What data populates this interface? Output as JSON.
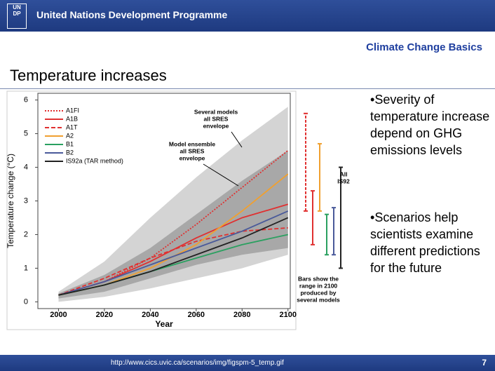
{
  "header": {
    "organization": "United Nations Development Programme",
    "logo": [
      "UN",
      "DP"
    ]
  },
  "subtitle": "Climate Change Basics",
  "heading": "Temperature increases",
  "bullets": [
    "Severity of temperature increase depend on GHG emissions levels",
    "Scenarios help scientists examine different predictions for the future"
  ],
  "source_url": "http://www.cics.uvic.ca/scenarios/img/figspm-5_temp.gif",
  "page_number": "7",
  "chart_data": {
    "type": "line",
    "x_label": "Year",
    "y_label": "Temperature change (°C)",
    "x": [
      2000,
      2020,
      2040,
      2060,
      2080,
      2100
    ],
    "xlim": [
      1991,
      2101
    ],
    "ylim": [
      -0.2,
      6.2
    ],
    "xticks": [
      2000,
      2020,
      2040,
      2060,
      2080,
      2100
    ],
    "yticks": [
      0,
      1,
      2,
      3,
      4,
      5,
      6
    ],
    "bands": [
      {
        "color": "#d4d4d4",
        "lower": [
          0,
          0.15,
          0.4,
          0.7,
          1.0,
          1.4
        ],
        "upper": [
          0.3,
          1.2,
          2.5,
          3.7,
          4.8,
          5.8
        ]
      },
      {
        "color": "#a8a8a8",
        "lower": [
          0.1,
          0.3,
          0.7,
          1.1,
          1.4,
          1.6
        ],
        "upper": [
          0.25,
          0.8,
          1.6,
          2.6,
          3.6,
          4.5
        ]
      }
    ],
    "series": [
      {
        "name": "A1FI",
        "color": "#e03030",
        "style": "dotted",
        "values": [
          0.2,
          0.6,
          1.3,
          2.3,
          3.4,
          4.5
        ],
        "range": [
          2.7,
          5.6
        ]
      },
      {
        "name": "A1B",
        "color": "#e03030",
        "style": "solid",
        "values": [
          0.2,
          0.6,
          1.2,
          1.9,
          2.5,
          2.9
        ],
        "range": [
          1.7,
          3.3
        ]
      },
      {
        "name": "A1T",
        "color": "#e03030",
        "style": "dashed",
        "values": [
          0.2,
          0.7,
          1.3,
          1.8,
          2.1,
          2.2
        ]
      },
      {
        "name": "A2",
        "color": "#f0a030",
        "style": "solid",
        "values": [
          0.2,
          0.5,
          1.0,
          1.7,
          2.7,
          3.8
        ],
        "range": [
          2.7,
          4.7
        ]
      },
      {
        "name": "B1",
        "color": "#2aa060",
        "style": "solid",
        "values": [
          0.2,
          0.5,
          0.9,
          1.3,
          1.7,
          2.0
        ],
        "range": [
          1.4,
          2.6
        ]
      },
      {
        "name": "B2",
        "color": "#4a5a9a",
        "style": "solid",
        "values": [
          0.2,
          0.6,
          1.1,
          1.6,
          2.1,
          2.7
        ],
        "range": [
          1.4,
          2.8
        ]
      },
      {
        "name": "IS92a (TAR method)",
        "color": "#222222",
        "style": "solid",
        "values": [
          0.2,
          0.5,
          0.9,
          1.4,
          1.9,
          2.5
        ],
        "range": [
          1.0,
          4.0
        ]
      }
    ],
    "annotations": [
      {
        "lines": [
          "Several models",
          "all SRES",
          "envelope"
        ]
      },
      {
        "lines": [
          "Model ensemble",
          "all SRES",
          "envelope"
        ]
      },
      {
        "lines": [
          "All",
          "IS92"
        ]
      },
      {
        "lines": [
          "Bars show the",
          "range in 2100",
          "produced by",
          "several models"
        ]
      }
    ]
  }
}
